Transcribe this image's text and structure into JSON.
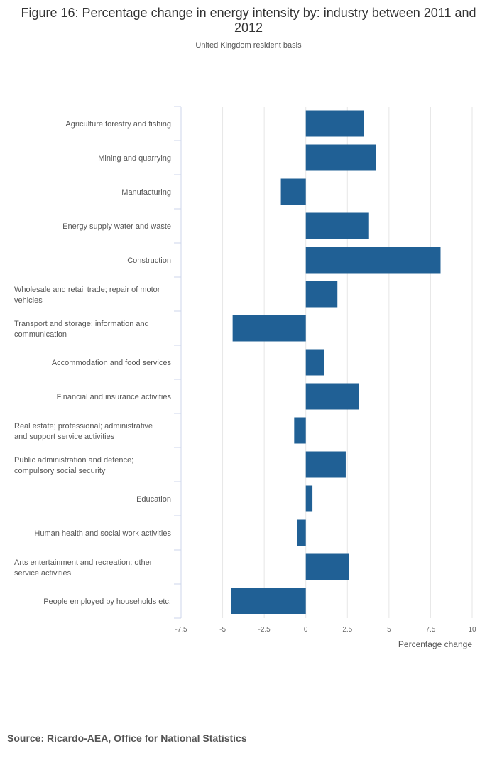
{
  "chart_data": {
    "type": "bar",
    "orientation": "horizontal",
    "title": "Figure 16: Percentage change in energy intensity by: industry between 2011 and 2012",
    "subtitle": "United Kingdom resident basis",
    "xlabel": "Percentage change",
    "ylabel": "",
    "xlim": [
      -7.5,
      10
    ],
    "xticks": [
      -7.5,
      -5,
      -2.5,
      0,
      2.5,
      5,
      7.5,
      10
    ],
    "xtick_labels": [
      "-7.5",
      "-5",
      "-2.5",
      "0",
      "2.5",
      "5",
      "7.5",
      "10"
    ],
    "grid": true,
    "bar_color": "#206095",
    "categories": [
      [
        "Agriculture forestry and fishing"
      ],
      [
        "Mining and quarrying"
      ],
      [
        "Manufacturing"
      ],
      [
        "Energy supply water and waste"
      ],
      [
        "Construction"
      ],
      [
        "Wholesale and retail trade; repair of motor",
        "vehicles"
      ],
      [
        "Transport and storage; information and",
        "communication"
      ],
      [
        "Accommodation and food services"
      ],
      [
        "Financial and insurance activities"
      ],
      [
        "Real estate; professional; administrative",
        "and support service activities"
      ],
      [
        "Public administration and defence;",
        "compulsory social security"
      ],
      [
        "Education"
      ],
      [
        "Human health and social work activities"
      ],
      [
        "Arts entertainment and recreation; other",
        "service activities"
      ],
      [
        "People employed by households etc."
      ]
    ],
    "values": [
      3.5,
      4.2,
      -1.5,
      3.8,
      8.1,
      1.9,
      -4.4,
      1.1,
      3.2,
      -0.7,
      2.4,
      0.4,
      -0.5,
      2.6,
      -4.5
    ]
  },
  "footer": {
    "source": "Source: Ricardo-AEA, Office for National Statistics"
  }
}
